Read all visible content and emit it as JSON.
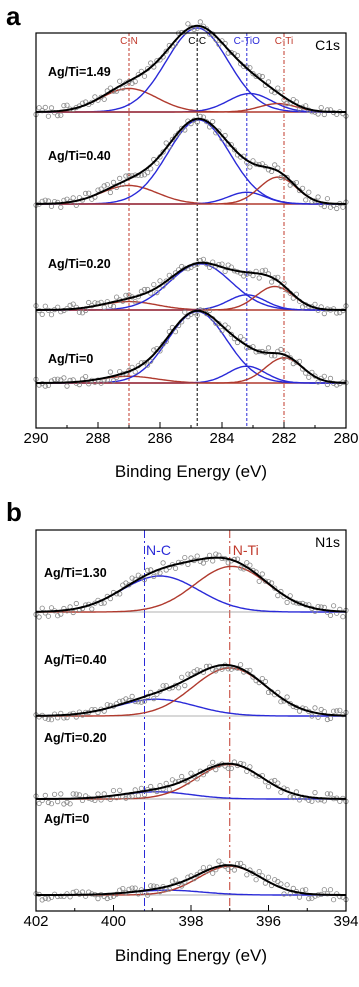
{
  "chart_data": [
    {
      "panel": "a",
      "type": "line",
      "corner_label": "C1s",
      "xlabel": "Binding Energy (eV)",
      "xlim": [
        290,
        280
      ],
      "x_reversed": true,
      "xticks": [
        290,
        288,
        286,
        284,
        282,
        280
      ],
      "reference_lines": [
        {
          "label": "C-N",
          "x": 287.0,
          "color": "#c0392b"
        },
        {
          "label": "C-C",
          "x": 284.8,
          "color": "#000000"
        },
        {
          "label": "C-TiO",
          "x": 283.2,
          "color": "#2a2ad8"
        },
        {
          "label": "C-Ti",
          "x": 282.0,
          "color": "#c0392b"
        }
      ],
      "spectra": [
        {
          "sample": "Ag/Ti=1.49",
          "components": [
            {
              "center": 287.0,
              "height": 0.28,
              "width": 0.9,
              "color": "#b03a2e"
            },
            {
              "center": 284.8,
              "height": 1.0,
              "width": 1.0,
              "color": "#2a2ad8"
            },
            {
              "center": 283.1,
              "height": 0.22,
              "width": 0.7,
              "color": "#2a2ad8"
            },
            {
              "center": 282.2,
              "height": 0.1,
              "width": 0.6,
              "color": "#b03a2e"
            }
          ]
        },
        {
          "sample": "Ag/Ti=0.40",
          "components": [
            {
              "center": 287.0,
              "height": 0.22,
              "width": 0.9,
              "color": "#b03a2e"
            },
            {
              "center": 284.75,
              "height": 1.0,
              "width": 1.0,
              "color": "#2a2ad8"
            },
            {
              "center": 283.2,
              "height": 0.14,
              "width": 0.6,
              "color": "#2a2ad8"
            },
            {
              "center": 282.2,
              "height": 0.32,
              "width": 0.6,
              "color": "#b03a2e"
            }
          ]
        },
        {
          "sample": "Ag/Ti=0.20",
          "components": [
            {
              "center": 287.0,
              "height": 0.1,
              "width": 0.9,
              "color": "#b03a2e"
            },
            {
              "center": 284.7,
              "height": 0.55,
              "width": 1.0,
              "color": "#2a2ad8"
            },
            {
              "center": 283.2,
              "height": 0.18,
              "width": 0.6,
              "color": "#2a2ad8"
            },
            {
              "center": 282.3,
              "height": 0.28,
              "width": 0.6,
              "color": "#b03a2e"
            }
          ]
        },
        {
          "sample": "Ag/Ti=0",
          "components": [
            {
              "center": 287.0,
              "height": 0.08,
              "width": 0.9,
              "color": "#b03a2e"
            },
            {
              "center": 284.8,
              "height": 0.85,
              "width": 0.95,
              "color": "#2a2ad8"
            },
            {
              "center": 283.2,
              "height": 0.2,
              "width": 0.6,
              "color": "#2a2ad8"
            },
            {
              "center": 282.0,
              "height": 0.3,
              "width": 0.6,
              "color": "#b03a2e"
            }
          ]
        }
      ]
    },
    {
      "panel": "b",
      "type": "line",
      "corner_label": "N1s",
      "xlabel": "Binding Energy (eV)",
      "xlim": [
        402,
        394
      ],
      "x_reversed": true,
      "xticks": [
        402,
        400,
        398,
        396,
        394
      ],
      "reference_lines": [
        {
          "label": "N-C",
          "x": 399.2,
          "color": "#2a2ad8"
        },
        {
          "label": "N-Ti",
          "x": 397.0,
          "color": "#c0392b"
        }
      ],
      "spectra": [
        {
          "sample": "Ag/Ti=1.30",
          "components": [
            {
              "center": 398.8,
              "height": 0.75,
              "width": 1.0,
              "color": "#2a2ad8"
            },
            {
              "center": 396.95,
              "height": 0.95,
              "width": 0.95,
              "color": "#b03a2e"
            }
          ]
        },
        {
          "sample": "Ag/Ti=0.40",
          "components": [
            {
              "center": 398.9,
              "height": 0.35,
              "width": 1.0,
              "color": "#2a2ad8"
            },
            {
              "center": 397.0,
              "height": 1.0,
              "width": 0.95,
              "color": "#b03a2e"
            }
          ]
        },
        {
          "sample": "Ag/Ti=0.20",
          "components": [
            {
              "center": 398.9,
              "height": 0.15,
              "width": 0.9,
              "color": "#2a2ad8"
            },
            {
              "center": 397.0,
              "height": 0.72,
              "width": 0.85,
              "color": "#b03a2e"
            }
          ]
        },
        {
          "sample": "Ag/Ti=0",
          "components": [
            {
              "center": 398.6,
              "height": 0.1,
              "width": 0.9,
              "color": "#2a2ad8"
            },
            {
              "center": 397.0,
              "height": 0.6,
              "width": 0.8,
              "color": "#b03a2e"
            }
          ]
        }
      ]
    }
  ]
}
